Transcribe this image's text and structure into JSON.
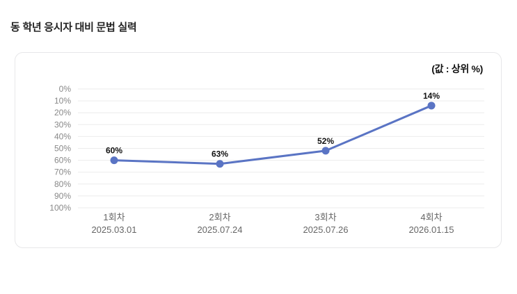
{
  "header": {
    "title": "동 학년 응시자 대비 문법 실력"
  },
  "chart_data": {
    "type": "line",
    "title": "동 학년 응시자 대비 문법 실력",
    "unit_label": "(값 : 상위 %)",
    "categories": [
      "1회차",
      "2회차",
      "3회차",
      "4회차"
    ],
    "category_dates": [
      "2025.03.01",
      "2025.07.24",
      "2025.07.26",
      "2026.01.15"
    ],
    "series": [
      {
        "name": "상위 %",
        "values": [
          60,
          63,
          52,
          14
        ],
        "point_labels": [
          "60%",
          "63%",
          "52%",
          "14%"
        ]
      }
    ],
    "y_tick_labels": [
      "0%",
      "10%",
      "20%",
      "30%",
      "40%",
      "50%",
      "60%",
      "70%",
      "80%",
      "90%",
      "100%"
    ],
    "ylim": [
      0,
      100
    ],
    "y_axis_inverted": true,
    "grid": "horizontal-only",
    "legend_position": "none",
    "colors": {
      "line": "#5a74c4",
      "point": "#5a74c4",
      "grid": "#ebebeb",
      "y_tick_text": "#888888",
      "x_tick_text": "#666666",
      "point_label_text": "#111111"
    }
  }
}
